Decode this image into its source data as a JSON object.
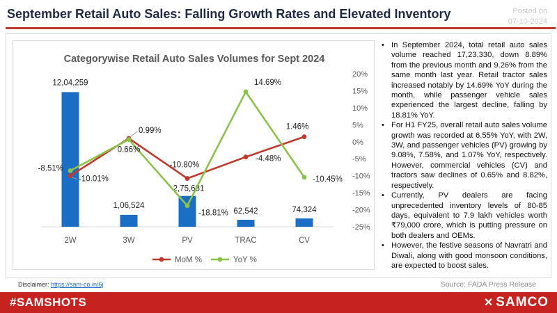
{
  "header": {
    "title": "September Retail Auto Sales: Falling Growth Rates and Elevated Inventory",
    "posted_label": "Posted on",
    "posted_date": "07-10-2024"
  },
  "chart_data": {
    "type": "bar",
    "title": "Categorywise Retail Auto Sales Volumes for Sept 2024",
    "categories": [
      "2W",
      "3W",
      "PV",
      "TRAC",
      "CV"
    ],
    "bars": {
      "values": [
        1204259,
        106524,
        275681,
        62542,
        74324
      ],
      "labels": [
        "12,04,259",
        "1,06,524",
        "2,75,681",
        "62,542",
        "74,324"
      ],
      "color": "#1a6fc4",
      "ylim": [
        0,
        1300000
      ]
    },
    "series": [
      {
        "name": "MoM %",
        "values": [
          -10.01,
          0.99,
          -10.8,
          -4.48,
          1.46
        ],
        "labels": [
          "-10.01%",
          "0.99%",
          "-10.80%",
          "-4.48%",
          "1.46%"
        ],
        "color": "#c0392b"
      },
      {
        "name": "YoY %",
        "values": [
          -8.51,
          0.66,
          -18.81,
          14.69,
          -10.45
        ],
        "labels": [
          "-8.51%",
          "0.66%",
          "-18.81%",
          "14.69%",
          "-10.45%"
        ],
        "color": "#8bc34a"
      }
    ],
    "y2_ticks": [
      "20%",
      "15%",
      "10%",
      "5%",
      "0%",
      "-5%",
      "-10%",
      "-15%",
      "-20%",
      "-25%"
    ],
    "y2lim": [
      -25,
      20
    ],
    "legend": "bottom",
    "grid": false
  },
  "insights": {
    "bullets": [
      "In September 2024, total retail auto sales volume reached 17,23,330, down 8.89% from the previous month and 9.26% from the same month last year. Retail tractor sales increased notably by 14.69% YoY during the month, while passenger vehicle sales experienced the largest decline, falling by 18.81% YoY.",
      "For H1 FY25, overall retail auto sales volume growth was recorded at 6.55% YoY, with 2W, 3W, and passenger vehicles (PV) growing by 9.08%, 7.58%, and 1.07% YoY, respectively. However, commercial vehicles (CV) and tractors saw declines of 0.65% and 8.82%, respectively.",
      "Currently, PV dealers are facing unprecedented inventory levels of 80-85 days, equivalent to 7.9 lakh vehicles worth ₹79,000 crore, which is putting pressure on both dealers and OEMs.",
      "However, the festive seasons of Navratri and Diwali, along with good monsoon conditions, are expected to boost sales."
    ]
  },
  "footer_info": {
    "disclaimer_label": "Disclaimer: ",
    "disclaimer_link": "https://sam-co.in/6j",
    "source": "Source: FADA Press Release"
  },
  "footer": {
    "hashtag": "#SAMSHOTS",
    "brand": "SAMCO",
    "brand_mark": "✕",
    "bar_color": "#c6221f"
  }
}
